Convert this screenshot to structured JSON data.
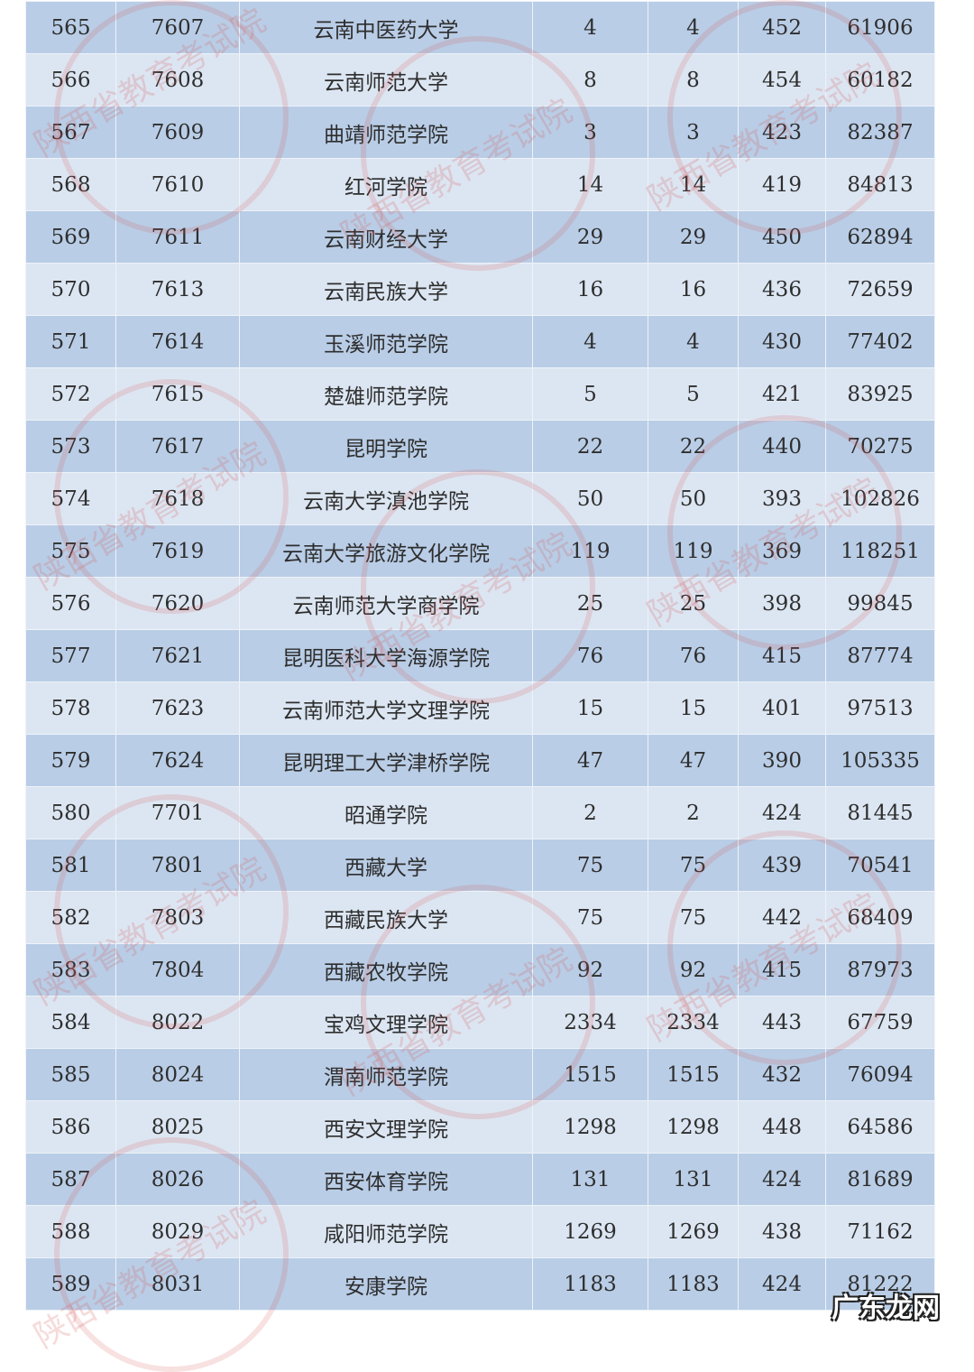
{
  "rows": [
    [
      "565",
      "7607",
      "云南中医药大学",
      "4",
      "4",
      "452",
      "61906"
    ],
    [
      "566",
      "7608",
      "云南师范大学",
      "8",
      "8",
      "454",
      "60182"
    ],
    [
      "567",
      "7609",
      "曲靖师范学院",
      "3",
      "3",
      "423",
      "82387"
    ],
    [
      "568",
      "7610",
      "红河学院",
      "14",
      "14",
      "419",
      "84813"
    ],
    [
      "569",
      "7611",
      "云南财经大学",
      "29",
      "29",
      "450",
      "62894"
    ],
    [
      "570",
      "7613",
      "云南民族大学",
      "16",
      "16",
      "436",
      "72659"
    ],
    [
      "571",
      "7614",
      "玉溪师范学院",
      "4",
      "4",
      "430",
      "77402"
    ],
    [
      "572",
      "7615",
      "楚雄师范学院",
      "5",
      "5",
      "421",
      "83925"
    ],
    [
      "573",
      "7617",
      "昆明学院",
      "22",
      "22",
      "440",
      "70275"
    ],
    [
      "574",
      "7618",
      "云南大学滇池学院",
      "50",
      "50",
      "393",
      "102826"
    ],
    [
      "575",
      "7619",
      "云南大学旅游文化学院",
      "119",
      "119",
      "369",
      "118251"
    ],
    [
      "576",
      "7620",
      "云南师范大学商学院",
      "25",
      "25",
      "398",
      "99845"
    ],
    [
      "577",
      "7621",
      "昆明医科大学海源学院",
      "76",
      "76",
      "415",
      "87774"
    ],
    [
      "578",
      "7623",
      "云南师范大学文理学院",
      "15",
      "15",
      "401",
      "97513"
    ],
    [
      "579",
      "7624",
      "昆明理工大学津桥学院",
      "47",
      "47",
      "390",
      "105335"
    ],
    [
      "580",
      "7701",
      "昭通学院",
      "2",
      "2",
      "424",
      "81445"
    ],
    [
      "581",
      "7801",
      "西藏大学",
      "75",
      "75",
      "439",
      "70541"
    ],
    [
      "582",
      "7803",
      "西藏民族大学",
      "75",
      "75",
      "442",
      "68409"
    ],
    [
      "583",
      "7804",
      "西藏农牧学院",
      "92",
      "92",
      "415",
      "87973"
    ],
    [
      "584",
      "8022",
      "宝鸡文理学院",
      "2334",
      "2334",
      "443",
      "67759"
    ],
    [
      "585",
      "8024",
      "渭南师范学院",
      "1515",
      "1515",
      "432",
      "76094"
    ],
    [
      "586",
      "8025",
      "西安文理学院",
      "1298",
      "1298",
      "448",
      "64586"
    ],
    [
      "587",
      "8026",
      "西安体育学院",
      "131",
      "131",
      "424",
      "81689"
    ],
    [
      "588",
      "8029",
      "咸阳师范学院",
      "1269",
      "1269",
      "438",
      "71162"
    ],
    [
      "589",
      "8031",
      "安康学院",
      "1183",
      "1183",
      "424",
      "81222"
    ]
  ],
  "watermark": "陕西省教育考试院",
  "logo": "广东龙网"
}
